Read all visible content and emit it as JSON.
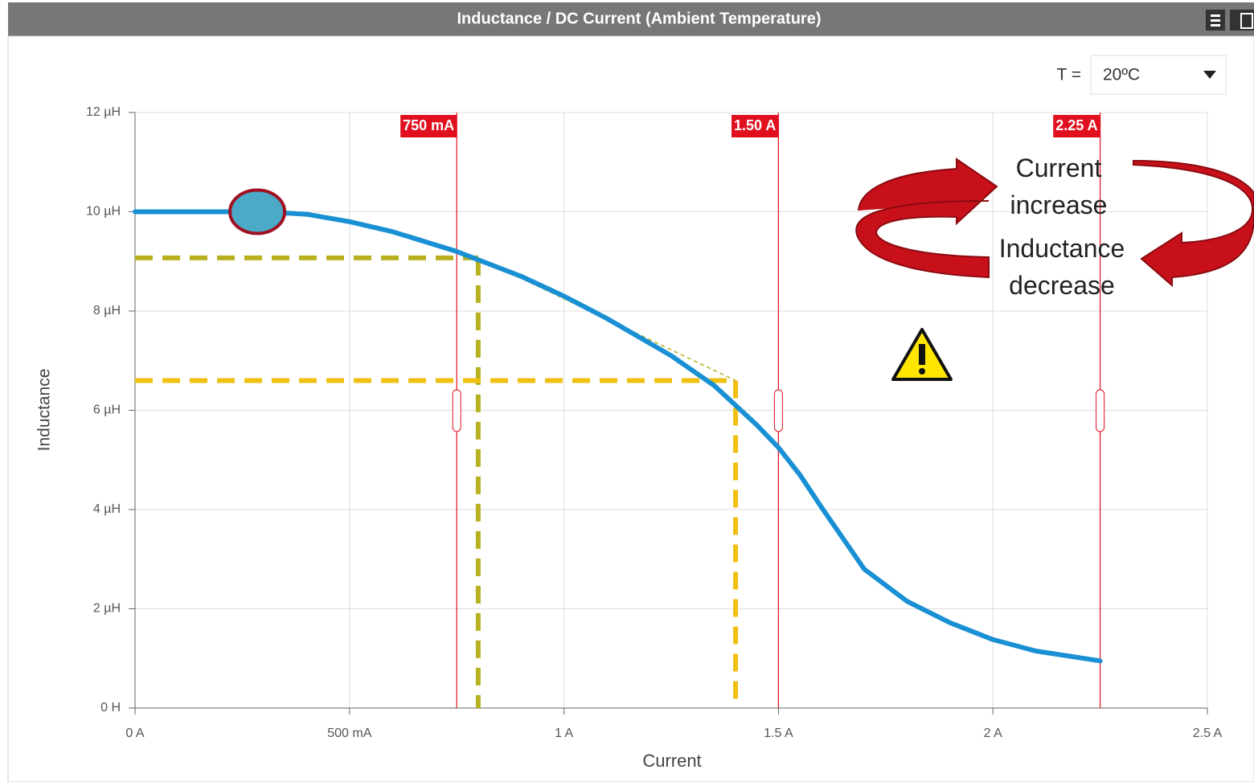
{
  "chart_data": {
    "type": "line",
    "title": "Inductance / DC Current (Ambient Temperature)",
    "temperature_label": "T =",
    "temperature_value": "20ºC",
    "xlabel": "Current",
    "ylabel": "Inductance",
    "x": [
      0,
      0.1,
      0.2,
      0.3,
      0.4,
      0.5,
      0.6,
      0.75,
      0.9,
      1.0,
      1.1,
      1.25,
      1.35,
      1.45,
      1.5,
      1.55,
      1.6,
      1.7,
      1.8,
      1.9,
      2.0,
      2.1,
      2.25
    ],
    "series": [
      {
        "name": "Inductance",
        "color": "#1a90d4",
        "values": [
          10,
          10,
          10,
          10,
          9.95,
          9.8,
          9.6,
          9.2,
          8.7,
          8.3,
          7.85,
          7.1,
          6.5,
          5.7,
          5.25,
          4.7,
          4.05,
          2.8,
          2.15,
          1.72,
          1.38,
          1.15,
          0.95
        ]
      }
    ],
    "xlim": [
      0,
      2.5
    ],
    "ylim": [
      0,
      12
    ],
    "xticks": [
      {
        "value": 0,
        "label": "0 A"
      },
      {
        "value": 0.5,
        "label": "500 mA"
      },
      {
        "value": 1,
        "label": "1 A"
      },
      {
        "value": 1.5,
        "label": "1.5 A"
      },
      {
        "value": 2,
        "label": "2 A"
      },
      {
        "value": 2.5,
        "label": "2.5 A"
      }
    ],
    "yticks": [
      {
        "value": 0,
        "label": "0 H"
      },
      {
        "value": 2,
        "label": "2 µH"
      },
      {
        "value": 4,
        "label": "4 µH"
      },
      {
        "value": 6,
        "label": "6 µH"
      },
      {
        "value": 8,
        "label": "8 µH"
      },
      {
        "value": 10,
        "label": "10 µH"
      },
      {
        "value": 12,
        "label": "12 µH"
      }
    ],
    "grid": true,
    "markers": [
      {
        "value": 0.75,
        "label": "750 mA",
        "color": "#e0101e"
      },
      {
        "value": 1.5,
        "label": "1.50 A",
        "color": "#e0101e"
      },
      {
        "value": 2.25,
        "label": "2.25 A",
        "color": "#e0101e"
      }
    ],
    "highlight": {
      "x": 0.285,
      "y": 10,
      "color": "#4aaac8"
    },
    "guides": [
      {
        "x": 0.8,
        "y": 9.07,
        "color": "#b8b020"
      },
      {
        "x": 1.4,
        "y": 6.6,
        "color": "#f0c010"
      }
    ],
    "annotations": [
      "Current increase",
      "Inductance decrease"
    ]
  }
}
